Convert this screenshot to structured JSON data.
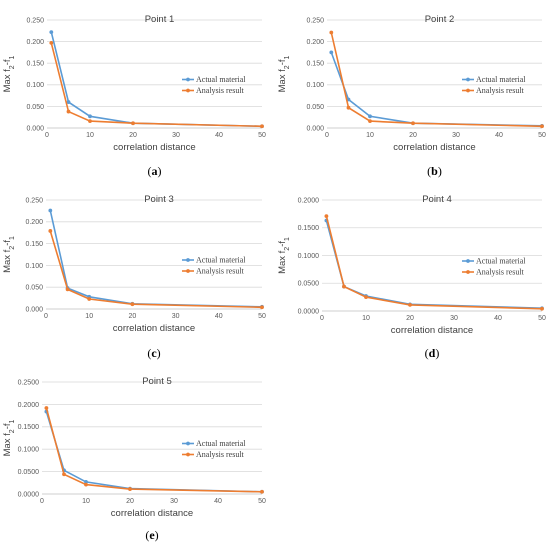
{
  "colors": {
    "actual": "#5b9bd5",
    "analysis": "#ed7d31",
    "grid": "#d9d9d9",
    "axis": "#bfbfbf"
  },
  "chart_data": [
    {
      "type": "line",
      "caption": "(a)",
      "title": "Point 1",
      "xlabel": "correlation distance",
      "ylabel_parts": [
        "Max f",
        "2",
        "-f",
        "1"
      ],
      "xlim": [
        0,
        50
      ],
      "ylim": [
        0,
        0.25
      ],
      "xticks": [
        0,
        10,
        20,
        30,
        40,
        50
      ],
      "yticks": [
        0,
        0.05,
        0.1,
        0.15,
        0.2,
        0.25
      ],
      "ytick_labels": [
        "0.000",
        "0.050",
        "0.100",
        "0.150",
        "0.200",
        "0.250"
      ],
      "x": [
        1,
        5,
        10,
        20,
        50
      ],
      "legend_position": "right",
      "series": [
        {
          "name": "Actual material",
          "values": [
            0.222,
            0.06,
            0.027,
            0.011,
            0.004
          ]
        },
        {
          "name": "Analysis result",
          "values": [
            0.197,
            0.038,
            0.016,
            0.011,
            0.004
          ]
        }
      ]
    },
    {
      "type": "line",
      "caption": "(b)",
      "title": "Point 2",
      "xlabel": "correlation distance",
      "ylabel_parts": [
        "Max f",
        "2",
        "-f",
        "1"
      ],
      "xlim": [
        0,
        50
      ],
      "ylim": [
        0,
        0.25
      ],
      "xticks": [
        0,
        10,
        20,
        30,
        40,
        50
      ],
      "yticks": [
        0,
        0.05,
        0.1,
        0.15,
        0.2,
        0.25
      ],
      "ytick_labels": [
        "0.000",
        "0.050",
        "0.100",
        "0.150",
        "0.200",
        "0.250"
      ],
      "x": [
        1,
        5,
        10,
        20,
        50
      ],
      "legend_position": "right",
      "series": [
        {
          "name": "Actual material",
          "values": [
            0.175,
            0.066,
            0.027,
            0.011,
            0.005
          ]
        },
        {
          "name": "Analysis result",
          "values": [
            0.221,
            0.047,
            0.016,
            0.011,
            0.004
          ]
        }
      ]
    },
    {
      "type": "line",
      "caption": "(c)",
      "title": "Point 3",
      "xlabel": "correlation distance",
      "ylabel_parts": [
        "Max f",
        "2",
        "-f",
        "1"
      ],
      "xlim": [
        0,
        50
      ],
      "ylim": [
        0,
        0.25
      ],
      "xticks": [
        0,
        10,
        20,
        30,
        40,
        50
      ],
      "yticks": [
        0,
        0.05,
        0.1,
        0.15,
        0.2,
        0.25
      ],
      "ytick_labels": [
        "0.000",
        "0.050",
        "0.100",
        "0.150",
        "0.200",
        "0.250"
      ],
      "x": [
        1,
        5,
        10,
        20,
        50
      ],
      "legend_position": "right",
      "series": [
        {
          "name": "Actual material",
          "values": [
            0.226,
            0.048,
            0.028,
            0.012,
            0.005
          ]
        },
        {
          "name": "Analysis result",
          "values": [
            0.179,
            0.045,
            0.023,
            0.011,
            0.004
          ]
        }
      ]
    },
    {
      "type": "line",
      "caption": "(d)",
      "title": "Point 4",
      "xlabel": "correlation distance",
      "ylabel_parts": [
        "Max f",
        "2",
        "-f",
        "1"
      ],
      "xlim": [
        0,
        50
      ],
      "ylim": [
        0,
        0.2
      ],
      "xticks": [
        0,
        10,
        20,
        30,
        40,
        50
      ],
      "yticks": [
        0,
        0.05,
        0.1,
        0.15,
        0.2
      ],
      "ytick_labels": [
        "0.0000",
        "0.0500",
        "0.1000",
        "0.1500",
        "0.2000"
      ],
      "x": [
        1,
        5,
        10,
        20,
        50
      ],
      "legend_position": "right",
      "series": [
        {
          "name": "Actual material",
          "values": [
            0.163,
            0.044,
            0.027,
            0.012,
            0.005
          ]
        },
        {
          "name": "Analysis result",
          "values": [
            0.171,
            0.044,
            0.025,
            0.011,
            0.004
          ]
        }
      ]
    },
    {
      "type": "line",
      "caption": "(e)",
      "title": "Point 5",
      "xlabel": "correlation distance",
      "ylabel_parts": [
        "Max f",
        "2",
        "-f",
        "1"
      ],
      "xlim": [
        0,
        50
      ],
      "ylim": [
        0,
        0.25
      ],
      "xticks": [
        0,
        10,
        20,
        30,
        40,
        50
      ],
      "yticks": [
        0,
        0.05,
        0.1,
        0.15,
        0.2,
        0.25
      ],
      "ytick_labels": [
        "0.0000",
        "0.0500",
        "0.1000",
        "0.1500",
        "0.2000",
        "0.2500"
      ],
      "x": [
        1,
        5,
        10,
        20,
        50
      ],
      "legend_position": "right",
      "series": [
        {
          "name": "Actual material",
          "values": [
            0.184,
            0.053,
            0.027,
            0.012,
            0.005
          ]
        },
        {
          "name": "Analysis result",
          "values": [
            0.192,
            0.044,
            0.021,
            0.011,
            0.005
          ]
        }
      ]
    }
  ]
}
